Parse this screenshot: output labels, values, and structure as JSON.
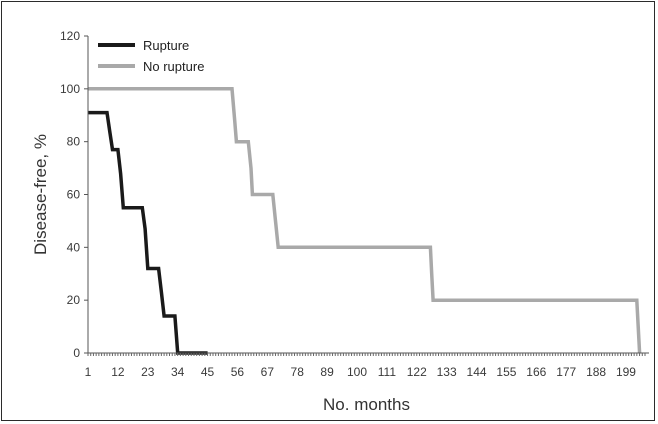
{
  "chart_data": {
    "type": "line",
    "step": true,
    "xlabel": "No. months",
    "ylabel": "Disease-free, %",
    "xlim": [
      1,
      206
    ],
    "ylim": [
      0,
      120
    ],
    "x_ticks": [
      1,
      12,
      23,
      34,
      45,
      56,
      67,
      78,
      89,
      100,
      111,
      122,
      133,
      144,
      155,
      166,
      177,
      188,
      199
    ],
    "y_ticks": [
      0,
      20,
      40,
      60,
      80,
      100,
      120
    ],
    "legend_position": "top-left",
    "series": [
      {
        "name": "Rupture",
        "color": "#1a1a1a",
        "points": [
          [
            1,
            91
          ],
          [
            8,
            91
          ],
          [
            9,
            84
          ],
          [
            10,
            77
          ],
          [
            12,
            77
          ],
          [
            13,
            68
          ],
          [
            14,
            55
          ],
          [
            21,
            55
          ],
          [
            22,
            47
          ],
          [
            23,
            32
          ],
          [
            27,
            32
          ],
          [
            28,
            23
          ],
          [
            29,
            14
          ],
          [
            33,
            14
          ],
          [
            34,
            0
          ],
          [
            45,
            0
          ]
        ]
      },
      {
        "name": "No rupture",
        "color": "#a9a9a9",
        "points": [
          [
            1,
            100
          ],
          [
            54,
            100
          ],
          [
            55,
            88
          ],
          [
            55.6,
            80
          ],
          [
            60,
            80
          ],
          [
            61,
            70
          ],
          [
            61.5,
            60
          ],
          [
            69,
            60
          ],
          [
            70,
            50
          ],
          [
            71,
            40
          ],
          [
            127,
            40
          ],
          [
            127.5,
            30
          ],
          [
            128,
            20
          ],
          [
            203,
            20
          ],
          [
            203.5,
            10
          ],
          [
            204,
            0
          ]
        ]
      }
    ]
  }
}
